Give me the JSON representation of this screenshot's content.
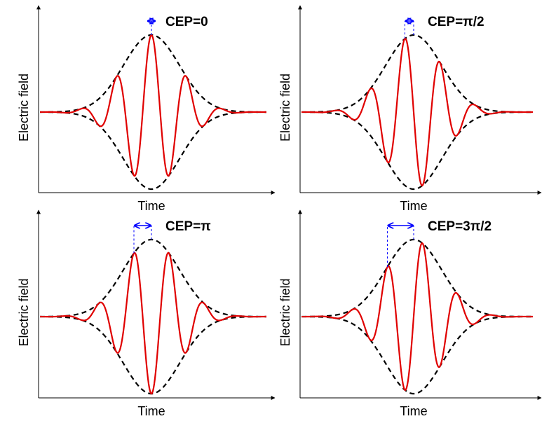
{
  "panels": [
    {
      "label": "CEP=0",
      "x_label": "Time",
      "y_label": "Electric field"
    },
    {
      "label": "CEP=π/2",
      "x_label": "Time",
      "y_label": "Electric field"
    },
    {
      "label": "CEP=π",
      "x_label": "Time",
      "y_label": "Electric field"
    },
    {
      "label": "CEP=3π/2",
      "x_label": "Time",
      "y_label": "Electric field"
    }
  ]
}
